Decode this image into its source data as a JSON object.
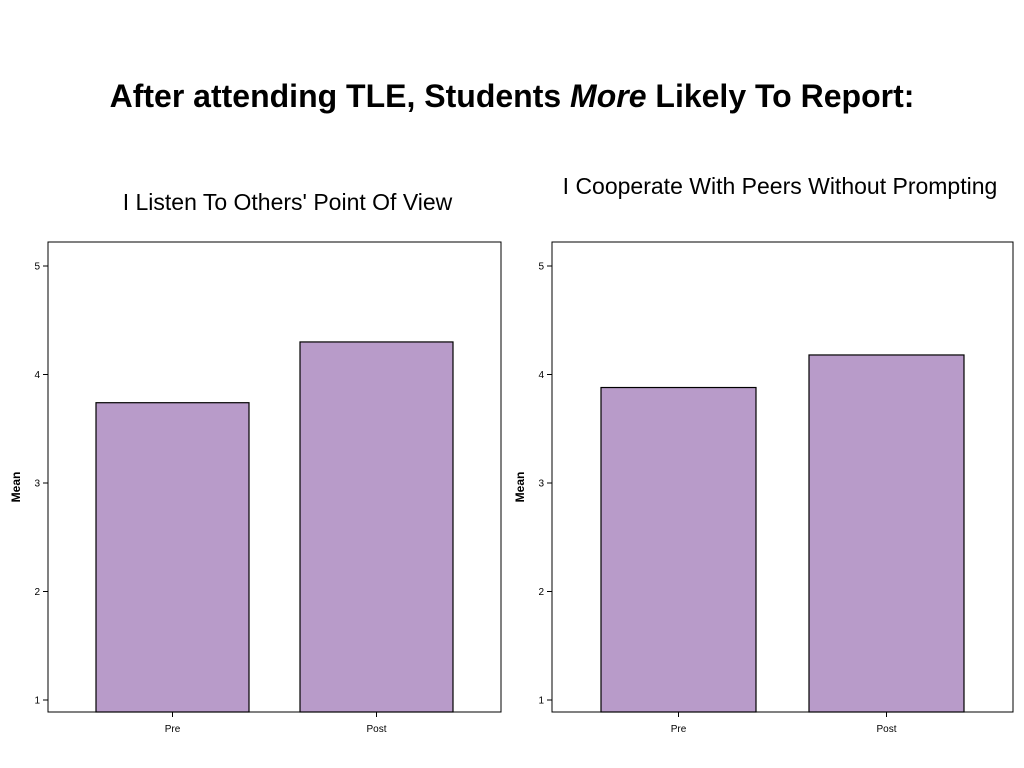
{
  "title": {
    "before": "After attending TLE, Students ",
    "emphasis": "More",
    "after": " Likely To Report:"
  },
  "colors": {
    "bar_fill": "#b89bc9",
    "bar_stroke": "#000000"
  },
  "chart_data": [
    {
      "type": "bar",
      "title": "I Listen To Others' Point Of View",
      "categories": [
        "Pre",
        "Post"
      ],
      "values": [
        3.74,
        4.3
      ],
      "xlabel": "",
      "ylabel": "Mean",
      "ylim": [
        1,
        5
      ],
      "yticks": [
        "1",
        "2",
        "3",
        "4",
        "5"
      ],
      "grid": false
    },
    {
      "type": "bar",
      "title": "I Cooperate With Peers Without Prompting",
      "categories": [
        "Pre",
        "Post"
      ],
      "values": [
        3.88,
        4.18
      ],
      "xlabel": "",
      "ylabel": "Mean",
      "ylim": [
        1,
        5
      ],
      "yticks": [
        "1",
        "2",
        "3",
        "4",
        "5"
      ],
      "grid": false
    }
  ]
}
